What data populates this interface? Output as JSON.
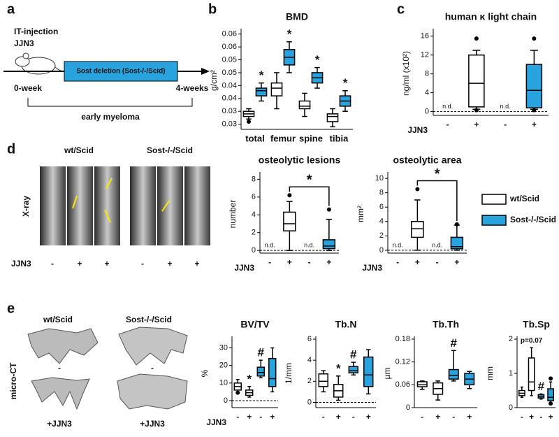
{
  "panel_labels": [
    "a",
    "b",
    "c",
    "d",
    "e"
  ],
  "panel_a": {
    "injection": "IT-injection",
    "cell_line": "JJN3",
    "treatment": "Sost deletion (Sost-/-/Scid)",
    "start": "0-week",
    "end": "4-weeks",
    "stage": "early myeloma"
  },
  "panel_d": {
    "groups": [
      "wt/Scid",
      "Sost-/-/Scid"
    ],
    "modality": "X-ray",
    "row_label": "JJN3",
    "conditions": [
      "-",
      "+",
      "+",
      "-",
      "+",
      "+"
    ]
  },
  "panel_e": {
    "groups": [
      "wt/Scid",
      "Sost-/-/Scid"
    ],
    "modality": "micro-CT",
    "conditions": [
      "-",
      "-",
      "+JJN3",
      "+JJN3"
    ]
  },
  "chart_data": [
    {
      "type": "box",
      "title": "BMD",
      "ylabel": "g/cm²",
      "categories": [
        "total",
        "femur",
        "spine",
        "tibia"
      ],
      "ylim": [
        0.028,
        0.066
      ],
      "yticks": [
        {
          "value": 0.03,
          "label": "0.03"
        },
        {
          "value": 0.035,
          "label": "0.03"
        },
        {
          "value": 0.04,
          "label": "0.04"
        },
        {
          "value": 0.045,
          "label": "0.04"
        },
        {
          "value": 0.05,
          "label": "0.05"
        },
        {
          "value": 0.055,
          "label": "0.05"
        },
        {
          "value": 0.06,
          "label": "0.06"
        },
        {
          "value": 0.065,
          "label": "0.06"
        }
      ],
      "series": [
        {
          "name": "wt/Scid",
          "color": "#ffffff",
          "values": [
            {
              "min": 0.032,
              "q1": 0.033,
              "median": 0.034,
              "q3": 0.035,
              "max": 0.036,
              "outliers": [
                0.031
              ]
            },
            {
              "min": 0.036,
              "q1": 0.041,
              "median": 0.044,
              "q3": 0.046,
              "max": 0.05,
              "outliers": []
            },
            {
              "min": 0.033,
              "q1": 0.036,
              "median": 0.037,
              "q3": 0.039,
              "max": 0.042,
              "outliers": []
            },
            {
              "min": 0.029,
              "q1": 0.031,
              "median": 0.033,
              "q3": 0.034,
              "max": 0.036,
              "outliers": []
            }
          ]
        },
        {
          "name": "Sost-/-/Scid",
          "color": "#29a3dd",
          "annotations": [
            "*",
            "*",
            "*",
            "*"
          ],
          "values": [
            {
              "min": 0.039,
              "q1": 0.041,
              "median": 0.043,
              "q3": 0.044,
              "max": 0.046,
              "outliers": []
            },
            {
              "min": 0.05,
              "q1": 0.053,
              "median": 0.056,
              "q3": 0.059,
              "max": 0.062,
              "outliers": []
            },
            {
              "min": 0.044,
              "q1": 0.046,
              "median": 0.048,
              "q3": 0.05,
              "max": 0.052,
              "outliers": []
            },
            {
              "min": 0.035,
              "q1": 0.037,
              "median": 0.039,
              "q3": 0.041,
              "max": 0.043,
              "outliers": []
            }
          ]
        }
      ]
    },
    {
      "type": "box",
      "title": "human κ light chain",
      "ylabel": "ng/ml (x10²)",
      "xlabel": "JJN3",
      "categories": [
        "-",
        "+",
        "-",
        "+"
      ],
      "ylim": [
        -0.8,
        17
      ],
      "yticks": [
        0,
        4,
        8,
        12,
        16
      ],
      "hline": 0,
      "series": [
        {
          "name": "wt/Scid",
          "color": "#ffffff",
          "value_labels": [
            "n.d.",
            null,
            null,
            null
          ],
          "values": [
            null,
            {
              "min": 0.5,
              "q1": 1,
              "median": 6,
              "q3": 12,
              "max": 13,
              "outliers": [
                15.5,
                0.3
              ]
            },
            null,
            null
          ]
        },
        {
          "name": "Sost-/-/Scid",
          "color": "#29a3dd",
          "value_labels": [
            null,
            null,
            "n.d.",
            null
          ],
          "values": [
            null,
            null,
            null,
            {
              "min": 0.5,
              "q1": 0.8,
              "median": 4.5,
              "q3": 10,
              "max": 13,
              "outliers": [
                15.5,
                0.3
              ]
            }
          ]
        }
      ]
    },
    {
      "type": "box",
      "title": "osteolytic lesions",
      "ylabel": "number",
      "xlabel": "JJN3",
      "categories": [
        "-",
        "+",
        "-",
        "+"
      ],
      "ylim": [
        -0.3,
        8.5
      ],
      "yticks": [
        0,
        2,
        4,
        6,
        8
      ],
      "hline": 0,
      "significance": "*",
      "series": [
        {
          "name": "wt/Scid",
          "color": "#ffffff",
          "value_labels": [
            "n.d.",
            null,
            null,
            null
          ],
          "values": [
            null,
            {
              "min": 0,
              "q1": 2.2,
              "median": 3,
              "q3": 4.3,
              "max": 5.5,
              "outliers": [
                6.2
              ]
            },
            null,
            null
          ]
        },
        {
          "name": "Sost-/-/Scid",
          "color": "#29a3dd",
          "value_labels": [
            null,
            null,
            "n.d.",
            null
          ],
          "values": [
            null,
            null,
            null,
            {
              "min": 0,
              "q1": 0.2,
              "median": 0.5,
              "q3": 1.2,
              "max": 3.5,
              "outliers": [
                4.6
              ]
            }
          ]
        }
      ]
    },
    {
      "type": "box",
      "title": "osteolytic area",
      "ylabel": "mm²",
      "xlabel": "JJN3",
      "categories": [
        "-",
        "+",
        "-",
        "+"
      ],
      "ylim": [
        -0.4,
        10.5
      ],
      "yticks": [
        0,
        2,
        4,
        6,
        8,
        10
      ],
      "hline": 0,
      "significance": "*",
      "legend": "right",
      "series": [
        {
          "name": "wt/Scid",
          "color": "#ffffff",
          "value_labels": [
            "n.d.",
            null,
            null,
            null
          ],
          "values": [
            null,
            {
              "min": 0,
              "q1": 1.8,
              "median": 3,
              "q3": 4,
              "max": 7,
              "outliers": [
                8.5
              ]
            },
            null,
            null
          ]
        },
        {
          "name": "Sost-/-/Scid",
          "color": "#29a3dd",
          "value_labels": [
            null,
            null,
            "n.d.",
            null
          ],
          "values": [
            null,
            null,
            null,
            {
              "min": 0,
              "q1": 0.2,
              "median": 0.5,
              "q3": 1.8,
              "max": 3.5,
              "outliers": [
                3.6
              ]
            }
          ]
        }
      ]
    },
    {
      "type": "box",
      "title": "BV/TV",
      "ylabel": "%",
      "xlabel": "JJN3",
      "categories": [
        "-",
        "+",
        "-",
        "+"
      ],
      "ylim": [
        -4,
        35
      ],
      "yticks": [
        0,
        10,
        20,
        30
      ],
      "hline": 0,
      "series": [
        {
          "name": "wt/Scid",
          "color": "#ffffff",
          "annotations": [
            null,
            "*",
            null,
            null
          ],
          "values": [
            {
              "min": 5,
              "q1": 6,
              "median": 8,
              "q3": 10,
              "max": 12,
              "outliers": [
                4.5
              ]
            },
            {
              "min": 2,
              "q1": 3,
              "median": 4.5,
              "q3": 6,
              "max": 8,
              "outliers": []
            },
            null,
            null
          ]
        },
        {
          "name": "Sost-/-/Scid",
          "color": "#29a3dd",
          "annotations": [
            null,
            null,
            "#",
            null
          ],
          "values": [
            null,
            null,
            {
              "min": 13,
              "q1": 14,
              "median": 16,
              "q3": 19,
              "max": 23,
              "outliers": []
            },
            {
              "min": 5,
              "q1": 8,
              "median": 12.5,
              "q3": 24,
              "max": 30,
              "outliers": []
            }
          ]
        }
      ]
    },
    {
      "type": "box",
      "title": "Tb.N",
      "ylabel": "1/mm",
      "categories": [
        "-",
        "+",
        "-",
        "+"
      ],
      "ylim": [
        -0.5,
        6
      ],
      "yticks": [
        0,
        2,
        4,
        6
      ],
      "hline": 0,
      "series": [
        {
          "name": "wt/Scid",
          "color": "#ffffff",
          "annotations": [
            null,
            "*",
            null,
            null
          ],
          "values": [
            {
              "min": 1,
              "q1": 1.5,
              "median": 2,
              "q3": 2.7,
              "max": 3,
              "outliers": []
            },
            {
              "min": 0.2,
              "q1": 0.5,
              "median": 1.1,
              "q3": 1.7,
              "max": 2.5,
              "outliers": []
            },
            null,
            null
          ]
        },
        {
          "name": "Sost-/-/Scid",
          "color": "#29a3dd",
          "annotations": [
            null,
            null,
            "#",
            null
          ],
          "values": [
            null,
            null,
            {
              "min": 2.6,
              "q1": 2.8,
              "median": 3,
              "q3": 3.4,
              "max": 3.8,
              "outliers": []
            },
            {
              "min": 0.8,
              "q1": 1.5,
              "median": 2.6,
              "q3": 4.3,
              "max": 5,
              "outliers": []
            }
          ]
        }
      ]
    },
    {
      "type": "box",
      "title": "Tb.Th",
      "ylabel": "µm",
      "categories": [
        "-",
        "+",
        "-",
        "+"
      ],
      "ylim": [
        0,
        0.18
      ],
      "yticks": [
        0,
        0.06,
        0.12,
        0.18
      ],
      "series": [
        {
          "name": "wt/Scid",
          "color": "#ffffff",
          "values": [
            {
              "min": 0.048,
              "q1": 0.055,
              "median": 0.06,
              "q3": 0.068,
              "max": 0.07,
              "outliers": []
            },
            {
              "min": 0.02,
              "q1": 0.035,
              "median": 0.05,
              "q3": 0.065,
              "max": 0.07,
              "outliers": []
            },
            null,
            null
          ]
        },
        {
          "name": "Sost-/-/Scid",
          "color": "#29a3dd",
          "annotations": [
            null,
            null,
            "#",
            null
          ],
          "values": [
            null,
            null,
            {
              "min": 0.07,
              "q1": 0.075,
              "median": 0.085,
              "q3": 0.1,
              "max": 0.15,
              "outliers": []
            },
            {
              "min": 0.05,
              "q1": 0.06,
              "median": 0.075,
              "q3": 0.09,
              "max": 0.095,
              "outliers": []
            }
          ]
        }
      ]
    },
    {
      "type": "box",
      "title": "Tb.Sp",
      "ylabel": "mm",
      "categories": [
        "-",
        "+",
        "-",
        "+"
      ],
      "ylim": [
        0,
        2
      ],
      "yticks": [
        0,
        1,
        2
      ],
      "series": [
        {
          "name": "wt/Scid",
          "color": "#ffffff",
          "annotations": [
            null,
            "p=0.07",
            null,
            null
          ],
          "values": [
            {
              "min": 0.3,
              "q1": 0.35,
              "median": 0.42,
              "q3": 0.5,
              "max": 0.6,
              "outliers": []
            },
            {
              "min": 0.35,
              "q1": 0.5,
              "median": 0.75,
              "q3": 1.45,
              "max": 1.75,
              "outliers": []
            },
            null,
            null
          ]
        },
        {
          "name": "Sost-/-/Scid",
          "color": "#29a3dd",
          "annotations": [
            null,
            null,
            "#",
            null
          ],
          "values": [
            null,
            null,
            {
              "min": 0.25,
              "q1": 0.28,
              "median": 0.32,
              "q3": 0.38,
              "max": 0.4,
              "outliers": []
            },
            {
              "min": 0.1,
              "q1": 0.2,
              "median": 0.3,
              "q3": 0.55,
              "max": 0.75,
              "outliers": [
                0.85,
                0.12
              ]
            }
          ]
        }
      ]
    }
  ]
}
